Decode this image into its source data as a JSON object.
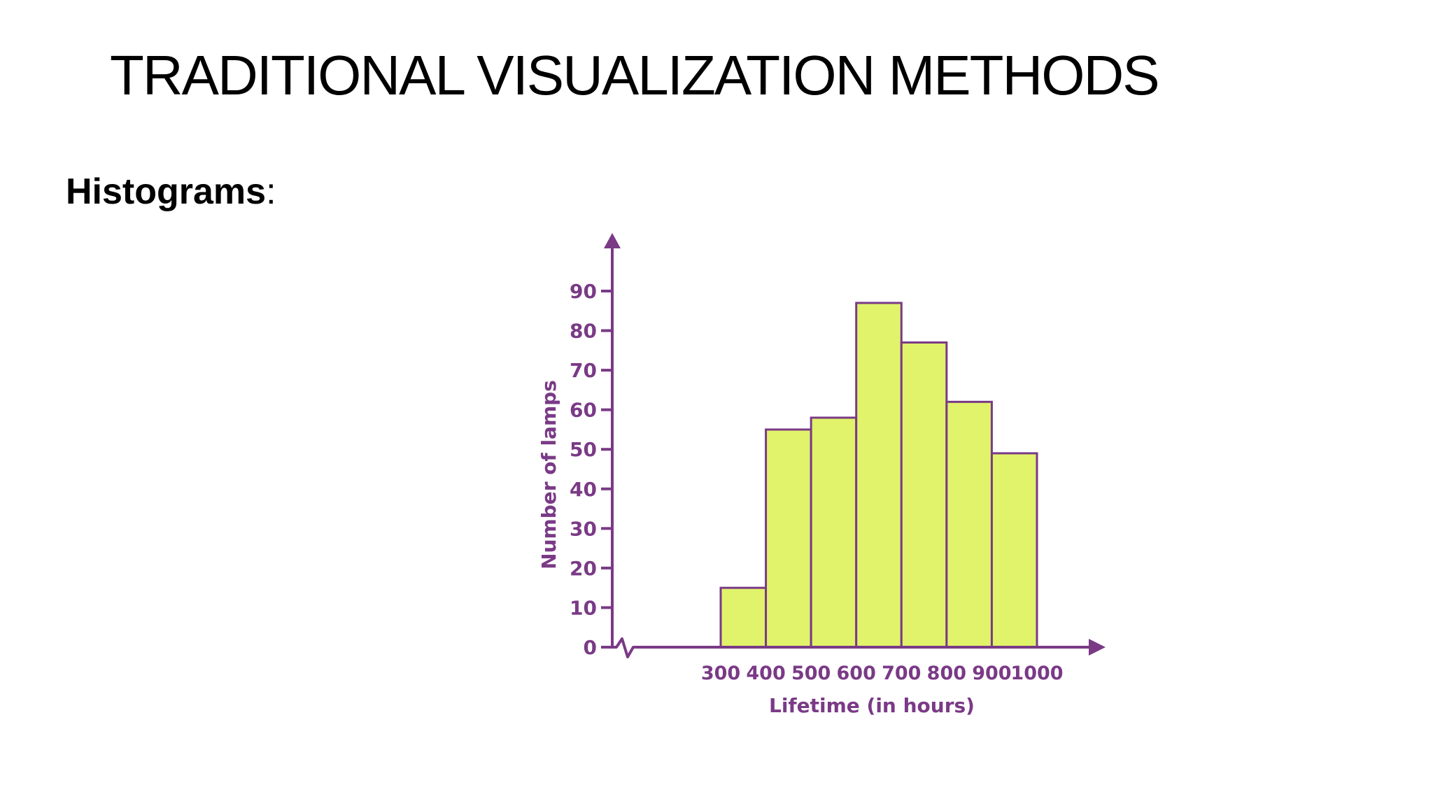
{
  "slide": {
    "title": "TRADITIONAL VISUALIZATION METHODS",
    "heading": "Histograms",
    "heading_suffix": ":"
  },
  "chart_data": {
    "type": "bar",
    "bins": [
      {
        "start": 300,
        "end": 400,
        "value": 15
      },
      {
        "start": 400,
        "end": 500,
        "value": 55
      },
      {
        "start": 500,
        "end": 600,
        "value": 58
      },
      {
        "start": 600,
        "end": 700,
        "value": 87
      },
      {
        "start": 700,
        "end": 800,
        "value": 77
      },
      {
        "start": 800,
        "end": 900,
        "value": 62
      },
      {
        "start": 900,
        "end": 1000,
        "value": 49
      }
    ],
    "xticks": [
      300,
      400,
      500,
      600,
      700,
      800,
      900,
      1000
    ],
    "yticks": [
      0,
      10,
      20,
      30,
      40,
      50,
      60,
      70,
      80,
      90
    ],
    "xlabel": "Lifetime (in hours)",
    "ylabel": "Number of lamps",
    "ylim": [
      0,
      90
    ],
    "xlim": [
      300,
      1000
    ],
    "axis_break": true,
    "grid": false,
    "colors": {
      "bar_fill": "#e0f36a",
      "bar_stroke": "#7a3a86",
      "axis": "#7a3a86",
      "text": "#7a3a86"
    }
  }
}
